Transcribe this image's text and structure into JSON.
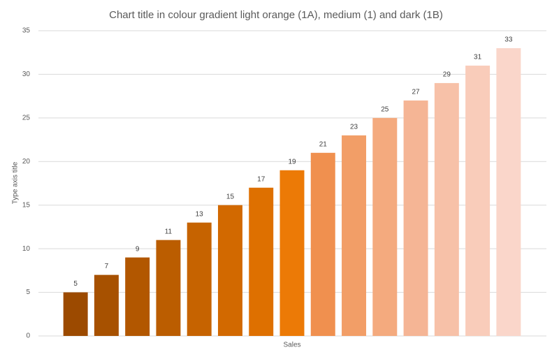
{
  "chart_data": {
    "type": "bar",
    "title": "Chart title in colour gradient light orange (1A), medium (1) and dark (1B)",
    "x_label": "Sales",
    "y_label": "Type axis title",
    "categories": [
      null,
      null,
      null,
      null,
      null,
      null,
      null,
      null,
      null,
      null,
      null,
      null,
      null,
      null,
      null
    ],
    "values": [
      5,
      7,
      9,
      11,
      13,
      15,
      17,
      19,
      21,
      23,
      25,
      27,
      29,
      31,
      33
    ],
    "colors": [
      "#9c4a00",
      "#a75100",
      "#b25700",
      "#bb5d00",
      "#c66300",
      "#d26900",
      "#de7000",
      "#ec7a06",
      "#f0904f",
      "#f29e67",
      "#f4aa7e",
      "#f5b595",
      "#f7c1a8",
      "#f9ccba",
      "#fad6ca"
    ],
    "ylim": [
      0,
      35
    ],
    "yticks": [
      0,
      5,
      10,
      15,
      20,
      25,
      30,
      35
    ],
    "grid": true,
    "data_labels": true
  }
}
